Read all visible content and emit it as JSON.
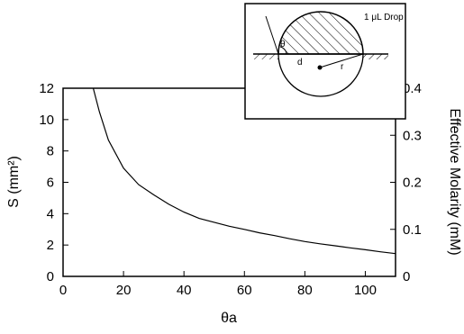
{
  "chart_data": {
    "type": "line",
    "title": "",
    "xlabel": "θa",
    "ylabel": "S (mm²)",
    "ylabel_right": "Effective Molarity (mM)",
    "xlim": [
      0,
      110
    ],
    "ylim": [
      0,
      12
    ],
    "ylim_right": [
      0,
      0.4
    ],
    "x_ticks": [
      "0",
      "20",
      "40",
      "60",
      "80",
      "100"
    ],
    "y_ticks": [
      "0",
      "2",
      "4",
      "6",
      "8",
      "10",
      "12"
    ],
    "y_ticks_right": [
      "0",
      "0.1",
      "0.2",
      "0.3",
      "0.4"
    ],
    "grid": false,
    "series": [
      {
        "x": [
          10,
          12,
          15,
          20,
          25,
          30,
          35,
          40,
          45,
          50,
          55,
          60,
          65,
          70,
          75,
          80,
          85,
          90,
          95,
          100,
          105,
          110
        ],
        "y": [
          12.0,
          10.5,
          8.7,
          6.9,
          5.85,
          5.2,
          4.6,
          4.1,
          3.7,
          3.45,
          3.2,
          3.0,
          2.78,
          2.6,
          2.4,
          2.22,
          2.08,
          1.95,
          1.82,
          1.7,
          1.57,
          1.45
        ]
      }
    ],
    "inset": {
      "drop_label": "1 μL Drop",
      "theta_label": "θ",
      "d_label": "d",
      "r_label": "r"
    }
  }
}
